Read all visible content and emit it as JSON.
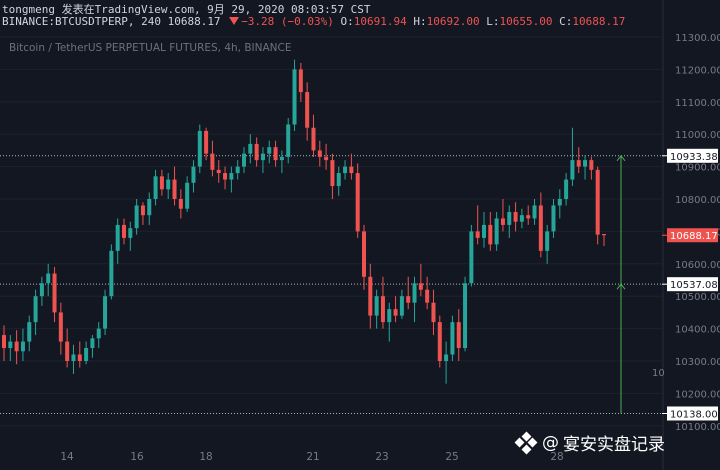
{
  "header": {
    "title": "tongmeng 发表在TradingView.com, 9月 29, 2020 08:03:57 CST",
    "symbol": "BINANCE:BTCUSDTPERP, 240",
    "last": "10688.17",
    "change": "−3.28 (−0.03%)",
    "open_label": "O:",
    "open": "10691.94",
    "high_label": "H:",
    "high": "10692.00",
    "low_label": "L:",
    "low": "10655.00",
    "close_label": "C:",
    "close": "10688.17",
    "subtitle": "Bitcoin / TetherUS PERPETUAL FUTURES, 4h, BINANCE"
  },
  "watermark": {
    "at": "@",
    "text": "宴安实盘记录",
    "icon": "binance-logo-icon"
  },
  "colors": {
    "background": "#131722",
    "up": "#26a69a",
    "down": "#ef5350",
    "range_line": "#4caf50",
    "grid": "#1e222d",
    "axis_text": "#787b86"
  },
  "chart_data": {
    "type": "candlestick",
    "ylim": [
      10100,
      11300
    ],
    "yticks": [
      "11300.00",
      "11200.00",
      "11100.00",
      "11000.00",
      "10900.00",
      "10800.00",
      "10700.00",
      "10600.00",
      "10500.00",
      "10400.00",
      "10300.00",
      "10200.00",
      "10100.00"
    ],
    "xticks": [
      "14",
      "16",
      "18",
      "21",
      "23",
      "25",
      "28"
    ],
    "xticks_partial": [
      "10"
    ],
    "price_labels": [
      {
        "value": "10933.38",
        "kind": "level"
      },
      {
        "value": "10688.17",
        "kind": "last"
      },
      {
        "value": "10537.08",
        "kind": "level"
      },
      {
        "value": "10138.00",
        "kind": "level"
      }
    ],
    "levels": [
      10933.38,
      10537.08,
      10138.0
    ],
    "last_price": 10688.17,
    "range_arrow": {
      "from": 10138.0,
      "to": 10933.38
    },
    "candles": [
      [
        10380,
        10410,
        10300,
        10340
      ],
      [
        10340,
        10380,
        10300,
        10360
      ],
      [
        10360,
        10395,
        10290,
        10330
      ],
      [
        10330,
        10400,
        10300,
        10360
      ],
      [
        10360,
        10440,
        10330,
        10420
      ],
      [
        10420,
        10520,
        10380,
        10500
      ],
      [
        10500,
        10560,
        10470,
        10540
      ],
      [
        10540,
        10600,
        10500,
        10570
      ],
      [
        10570,
        10590,
        10420,
        10450
      ],
      [
        10450,
        10480,
        10320,
        10360
      ],
      [
        10360,
        10400,
        10280,
        10300
      ],
      [
        10300,
        10350,
        10260,
        10320
      ],
      [
        10320,
        10360,
        10280,
        10300
      ],
      [
        10300,
        10360,
        10290,
        10340
      ],
      [
        10340,
        10380,
        10310,
        10370
      ],
      [
        10370,
        10420,
        10340,
        10400
      ],
      [
        10400,
        10520,
        10380,
        10500
      ],
      [
        10500,
        10660,
        10490,
        10640
      ],
      [
        10640,
        10740,
        10600,
        10720
      ],
      [
        10720,
        10740,
        10660,
        10680
      ],
      [
        10680,
        10730,
        10640,
        10710
      ],
      [
        10710,
        10800,
        10690,
        10780
      ],
      [
        10780,
        10790,
        10720,
        10750
      ],
      [
        10750,
        10820,
        10720,
        10800
      ],
      [
        10800,
        10890,
        10780,
        10870
      ],
      [
        10870,
        10890,
        10810,
        10830
      ],
      [
        10830,
        10880,
        10800,
        10860
      ],
      [
        10860,
        10900,
        10780,
        10800
      ],
      [
        10800,
        10830,
        10740,
        10770
      ],
      [
        10770,
        10870,
        10760,
        10850
      ],
      [
        10850,
        10920,
        10820,
        10900
      ],
      [
        10900,
        11030,
        10880,
        11010
      ],
      [
        11010,
        11020,
        10920,
        10940
      ],
      [
        10940,
        10980,
        10870,
        10890
      ],
      [
        10890,
        10920,
        10850,
        10880
      ],
      [
        10880,
        10900,
        10830,
        10860
      ],
      [
        10860,
        10900,
        10820,
        10880
      ],
      [
        10880,
        10920,
        10860,
        10900
      ],
      [
        10900,
        10960,
        10880,
        10940
      ],
      [
        10940,
        11000,
        10910,
        10970
      ],
      [
        10970,
        10990,
        10900,
        10920
      ],
      [
        10920,
        10960,
        10880,
        10940
      ],
      [
        10940,
        10980,
        10910,
        10960
      ],
      [
        10960,
        10980,
        10900,
        10920
      ],
      [
        10920,
        10950,
        10880,
        10930
      ],
      [
        10930,
        11050,
        10910,
        11030
      ],
      [
        11030,
        11230,
        11010,
        11200
      ],
      [
        11200,
        11220,
        11100,
        11130
      ],
      [
        11130,
        11160,
        10980,
        11020
      ],
      [
        11020,
        11060,
        10930,
        10950
      ],
      [
        10950,
        10980,
        10900,
        10930
      ],
      [
        10930,
        10970,
        10890,
        10920
      ],
      [
        10920,
        10940,
        10800,
        10840
      ],
      [
        10840,
        10900,
        10810,
        10880
      ],
      [
        10880,
        10920,
        10860,
        10900
      ],
      [
        10900,
        10940,
        10860,
        10880
      ],
      [
        10880,
        10910,
        10680,
        10700
      ],
      [
        10700,
        10720,
        10520,
        10560
      ],
      [
        10560,
        10600,
        10400,
        10440
      ],
      [
        10440,
        10520,
        10400,
        10500
      ],
      [
        10500,
        10560,
        10400,
        10420
      ],
      [
        10420,
        10480,
        10360,
        10460
      ],
      [
        10460,
        10500,
        10420,
        10440
      ],
      [
        10440,
        10520,
        10430,
        10500
      ],
      [
        10500,
        10560,
        10460,
        10480
      ],
      [
        10480,
        10560,
        10420,
        10540
      ],
      [
        10540,
        10600,
        10500,
        10520
      ],
      [
        10520,
        10560,
        10460,
        10480
      ],
      [
        10480,
        10520,
        10380,
        10420
      ],
      [
        10420,
        10440,
        10280,
        10300
      ],
      [
        10300,
        10360,
        10230,
        10320
      ],
      [
        10320,
        10440,
        10300,
        10420
      ],
      [
        10420,
        10460,
        10300,
        10340
      ],
      [
        10340,
        10560,
        10330,
        10540
      ],
      [
        10540,
        10720,
        10530,
        10700
      ],
      [
        10700,
        10780,
        10660,
        10680
      ],
      [
        10680,
        10760,
        10650,
        10720
      ],
      [
        10720,
        10760,
        10640,
        10660
      ],
      [
        10660,
        10760,
        10640,
        10740
      ],
      [
        10740,
        10800,
        10700,
        10720
      ],
      [
        10720,
        10780,
        10680,
        10760
      ],
      [
        10760,
        10790,
        10700,
        10730
      ],
      [
        10730,
        10770,
        10710,
        10750
      ],
      [
        10750,
        10780,
        10720,
        10740
      ],
      [
        10740,
        10800,
        10720,
        10780
      ],
      [
        10780,
        10820,
        10620,
        10640
      ],
      [
        10640,
        10720,
        10600,
        10700
      ],
      [
        10700,
        10800,
        10680,
        10780
      ],
      [
        10780,
        10830,
        10740,
        10800
      ],
      [
        10800,
        10880,
        10780,
        10860
      ],
      [
        10860,
        11020,
        10840,
        10920
      ],
      [
        10920,
        10960,
        10880,
        10900
      ],
      [
        10900,
        10935,
        10860,
        10920
      ],
      [
        10920,
        10930,
        10860,
        10890
      ],
      [
        10890,
        10900,
        10660,
        10690
      ],
      [
        10691.94,
        10692,
        10655,
        10688.17
      ]
    ]
  }
}
